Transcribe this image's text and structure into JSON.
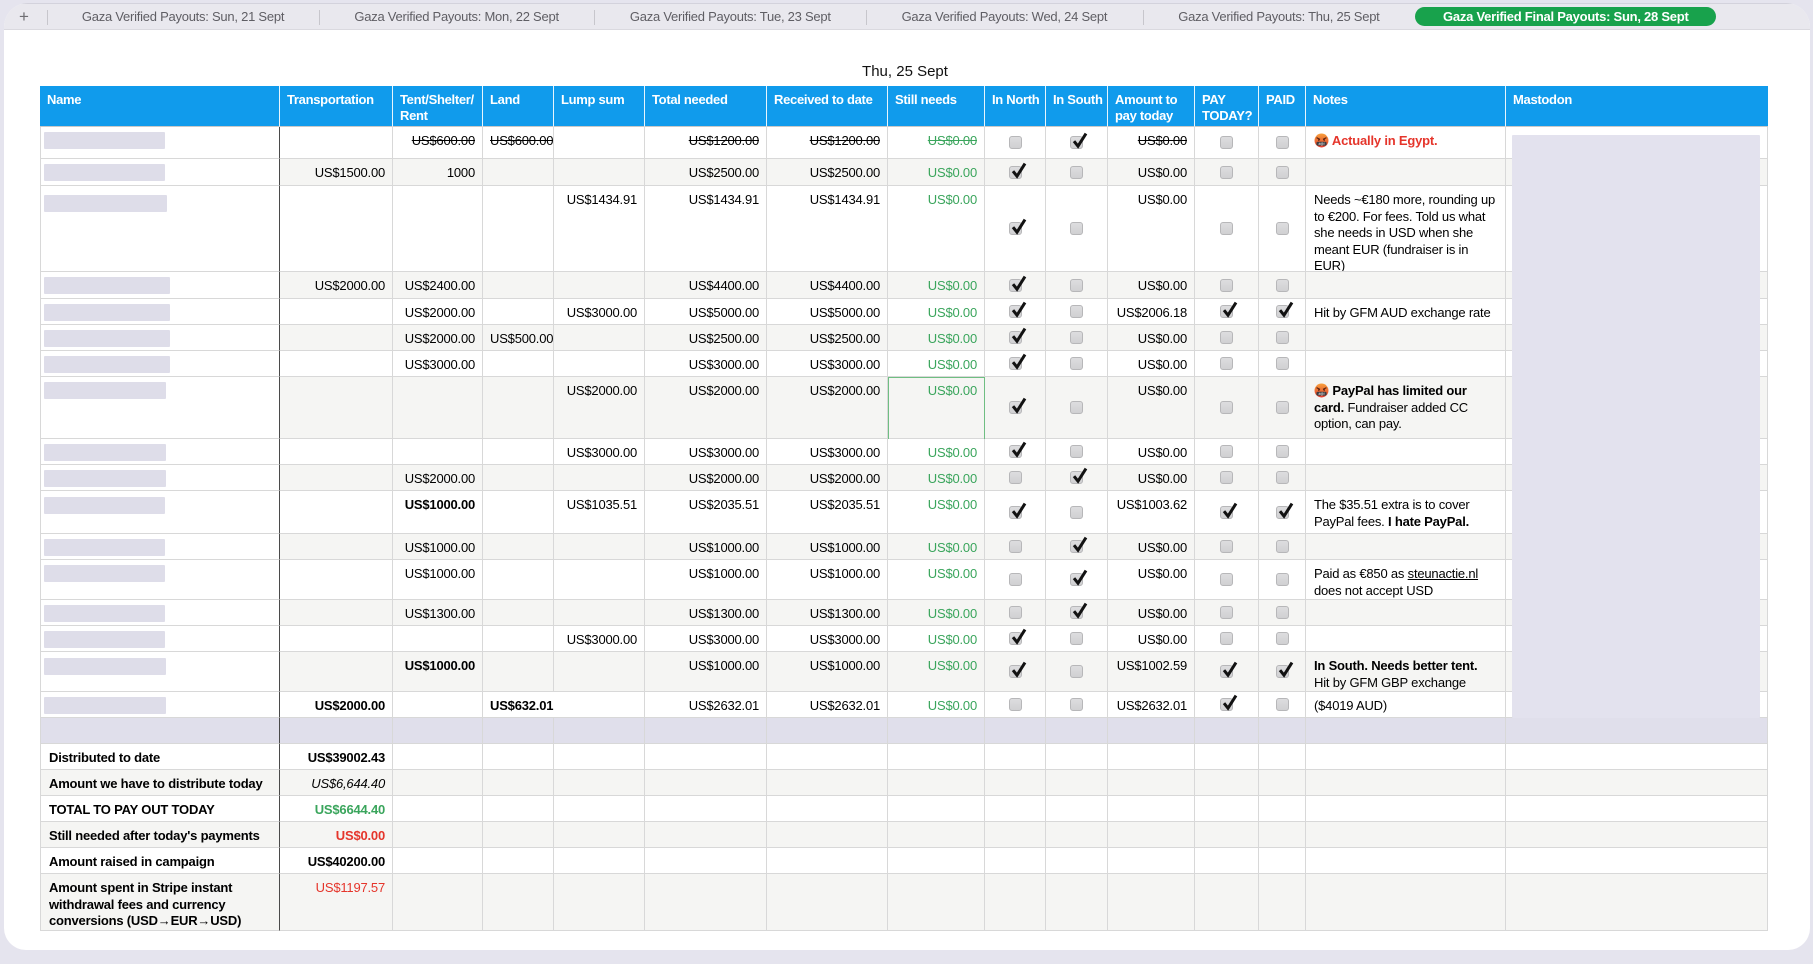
{
  "theme": {
    "page_background": "#E5E4EE",
    "tab_bar_background": "#E9E8EE",
    "active_tab_color": "#18A24C",
    "header_blue": "#109BEC",
    "stripe_gray": "#F5F5F3",
    "redaction_lavender": "#DEDDE9",
    "green_text": "#3AA55C",
    "red_text": "#E5352B",
    "selection_green_border": "#6FBE82"
  },
  "tab_bar": {
    "add_button_label": "+",
    "tabs": [
      {
        "label": "Gaza Verified Payouts: Sun, 21 Sept",
        "active": false
      },
      {
        "label": "Gaza Verified Payouts: Mon, 22 Sept",
        "active": false
      },
      {
        "label": "Gaza Verified Payouts: Tue, 23 Sept",
        "active": false
      },
      {
        "label": "Gaza Verified Payouts: Wed, 24 Sept",
        "active": false
      },
      {
        "label": "Gaza Verified Payouts: Thu, 25 Sept",
        "active": false
      },
      {
        "label": "Gaza Verified Final Payouts: Sun, 28 Sept",
        "active": true
      }
    ]
  },
  "sheet": {
    "title": "Thu, 25 Sept",
    "columns": [
      {
        "id": "name",
        "label": "Name"
      },
      {
        "id": "trans",
        "label": "Transportation"
      },
      {
        "id": "tent",
        "label": "Tent/Shelter/\nRent"
      },
      {
        "id": "land",
        "label": "Land"
      },
      {
        "id": "lump",
        "label": "Lump sum"
      },
      {
        "id": "total",
        "label": "Total needed"
      },
      {
        "id": "received",
        "label": "Received to date"
      },
      {
        "id": "still",
        "label": "Still needs"
      },
      {
        "id": "north",
        "label": "In North"
      },
      {
        "id": "south",
        "label": "In South"
      },
      {
        "id": "amount",
        "label": "Amount to\npay today"
      },
      {
        "id": "paytoday",
        "label": "PAY\nTODAY?"
      },
      {
        "id": "paid",
        "label": "PAID"
      },
      {
        "id": "notes",
        "label": "Notes"
      },
      {
        "id": "mastodon",
        "label": "Mastodon"
      }
    ],
    "rows": [
      {
        "name_redacted": true,
        "trans": "",
        "tent": "US$600.00",
        "land": "US$600.00",
        "lump": "",
        "total": "US$1200.00",
        "received": "US$1200.00",
        "still": "US$0.00",
        "amount": "US$0.00",
        "north": false,
        "south": true,
        "paytoday": false,
        "paid": false,
        "strike_values": true,
        "notes": [
          {
            "icon": "angry-emoji"
          },
          {
            "t": " Actually in Egypt.",
            "b": true,
            "red": true
          }
        ]
      },
      {
        "name_redacted": true,
        "trans": "US$1500.00",
        "tent": "1000",
        "land": "",
        "lump": "",
        "total": "US$2500.00",
        "received": "US$2500.00",
        "still": "US$0.00",
        "amount": "US$0.00",
        "north": true,
        "south": false,
        "paytoday": false,
        "paid": false,
        "notes": []
      },
      {
        "name_redacted": true,
        "trans": "",
        "tent": "",
        "land": "",
        "lump": "US$1434.91",
        "total": "US$1434.91",
        "received": "US$1434.91",
        "still": "US$0.00",
        "amount": "US$0.00",
        "north": true,
        "south": false,
        "paytoday": false,
        "paid": false,
        "notes": [
          {
            "t": "Needs ~€180 more, rounding up"
          },
          {
            "br": true
          },
          {
            "t": "to €200. For fees. Told us what"
          },
          {
            "br": true
          },
          {
            "t": "she needs in USD when she"
          },
          {
            "br": true
          },
          {
            "t": "meant EUR (fundraiser is in"
          },
          {
            "br": true
          },
          {
            "t": "EUR)"
          }
        ]
      },
      {
        "name_redacted": true,
        "trans": "US$2000.00",
        "tent": "US$2400.00",
        "land": "",
        "lump": "",
        "total": "US$4400.00",
        "received": "US$4400.00",
        "still": "US$0.00",
        "amount": "US$0.00",
        "north": true,
        "south": false,
        "paytoday": false,
        "paid": false,
        "notes": []
      },
      {
        "name_redacted": true,
        "trans": "",
        "tent": "US$2000.00",
        "land": "",
        "lump": "US$3000.00",
        "total": "US$5000.00",
        "received": "US$5000.00",
        "still": "US$0.00",
        "amount": "US$2006.18",
        "north": true,
        "south": false,
        "paytoday": true,
        "paid": true,
        "notes": [
          {
            "t": "Hit by GFM AUD exchange rate"
          }
        ]
      },
      {
        "name_redacted": true,
        "trans": "",
        "tent": "US$2000.00",
        "land": "US$500.00",
        "lump": "",
        "total": "US$2500.00",
        "received": "US$2500.00",
        "still": "US$0.00",
        "amount": "US$0.00",
        "north": true,
        "south": false,
        "paytoday": false,
        "paid": false,
        "notes": []
      },
      {
        "name_redacted": true,
        "trans": "",
        "tent": "US$3000.00",
        "land": "",
        "lump": "",
        "total": "US$3000.00",
        "received": "US$3000.00",
        "still": "US$0.00",
        "amount": "US$0.00",
        "north": true,
        "south": false,
        "paytoday": false,
        "paid": false,
        "notes": []
      },
      {
        "name_redacted": true,
        "trans": "",
        "tent": "",
        "land": "",
        "lump": "US$2000.00",
        "total": "US$2000.00",
        "received": "US$2000.00",
        "still": "US$0.00",
        "amount": "US$0.00",
        "north": true,
        "south": false,
        "paytoday": false,
        "paid": false,
        "selected_cell": "still",
        "notes": [
          {
            "icon": "angry-emoji"
          },
          {
            "t": " PayPal has limited our",
            "b": true
          },
          {
            "br": true
          },
          {
            "t": "card.",
            "b": true
          },
          {
            "t": " Fundraiser added CC"
          },
          {
            "br": true
          },
          {
            "t": "option, can pay."
          }
        ]
      },
      {
        "name_redacted": true,
        "trans": "",
        "tent": "",
        "land": "",
        "lump": "US$3000.00",
        "total": "US$3000.00",
        "received": "US$3000.00",
        "still": "US$0.00",
        "amount": "US$0.00",
        "north": true,
        "south": false,
        "paytoday": false,
        "paid": false,
        "notes": []
      },
      {
        "name_redacted": true,
        "trans": "",
        "tent": "US$2000.00",
        "land": "",
        "lump": "",
        "total": "US$2000.00",
        "received": "US$2000.00",
        "still": "US$0.00",
        "amount": "US$0.00",
        "north": false,
        "south": true,
        "paytoday": false,
        "paid": false,
        "notes": []
      },
      {
        "name_redacted": true,
        "trans": "",
        "tent": "US$1000.00",
        "tent_bold": true,
        "land": "",
        "lump": "US$1035.51",
        "total": "US$2035.51",
        "received": "US$2035.51",
        "still": "US$0.00",
        "amount": "US$1003.62",
        "north": true,
        "south": false,
        "paytoday": true,
        "paid": true,
        "notes": [
          {
            "t": "The $35.51 extra is to cover"
          },
          {
            "br": true
          },
          {
            "t": "PayPal fees. "
          },
          {
            "t": "I hate PayPal.",
            "b": true
          }
        ]
      },
      {
        "name_redacted": true,
        "trans": "",
        "tent": "US$1000.00",
        "land": "",
        "lump": "",
        "total": "US$1000.00",
        "received": "US$1000.00",
        "still": "US$0.00",
        "amount": "US$0.00",
        "north": false,
        "south": true,
        "paytoday": false,
        "paid": false,
        "notes": []
      },
      {
        "name_redacted": true,
        "trans": "",
        "tent": "US$1000.00",
        "land": "",
        "lump": "",
        "total": "US$1000.00",
        "received": "US$1000.00",
        "still": "US$0.00",
        "amount": "US$0.00",
        "north": false,
        "south": true,
        "paytoday": false,
        "paid": false,
        "notes": [
          {
            "t": "Paid as €850 as "
          },
          {
            "t": "steunactie.nl",
            "u": true
          },
          {
            "br": true
          },
          {
            "t": "does not accept USD"
          }
        ]
      },
      {
        "name_redacted": true,
        "trans": "",
        "tent": "US$1300.00",
        "land": "",
        "lump": "",
        "total": "US$1300.00",
        "received": "US$1300.00",
        "still": "US$0.00",
        "amount": "US$0.00",
        "north": false,
        "south": true,
        "paytoday": false,
        "paid": false,
        "notes": []
      },
      {
        "name_redacted": true,
        "trans": "",
        "tent": "",
        "land": "",
        "lump": "US$3000.00",
        "total": "US$3000.00",
        "received": "US$3000.00",
        "still": "US$0.00",
        "amount": "US$0.00",
        "north": true,
        "south": false,
        "paytoday": false,
        "paid": false,
        "notes": []
      },
      {
        "name_redacted": true,
        "trans": "",
        "tent": "US$1000.00",
        "tent_bold": true,
        "land": "",
        "lump": "",
        "total": "US$1000.00",
        "received": "US$1000.00",
        "still": "US$0.00",
        "amount": "US$1002.59",
        "north": true,
        "south": false,
        "paytoday": true,
        "paid": true,
        "notes": [
          {
            "t": "In South. Needs better tent.",
            "b": true
          },
          {
            "br": true
          },
          {
            "t": "Hit by GFM GBP exchange"
          }
        ]
      },
      {
        "name_redacted": true,
        "trans": "US$2000.00",
        "trans_bold": true,
        "tent": "",
        "land": "US$632.01",
        "land_bold": true,
        "lump": "",
        "total": "US$2632.01",
        "received": "US$2632.01",
        "still": "US$0.00",
        "amount": "US$2632.01",
        "north": false,
        "south": false,
        "paytoday": true,
        "paid": false,
        "notes": [
          {
            "t": "($4019 AUD)"
          }
        ]
      },
      {
        "redacted_row": true,
        "trans": "",
        "tent": "",
        "land": "",
        "lump": "",
        "total": "",
        "received": "",
        "still": "",
        "amount": "",
        "notes": []
      }
    ],
    "summary_rows": [
      {
        "label": "Distributed to date",
        "value": "US$39002.43",
        "value_style": "bold"
      },
      {
        "label": "Amount we have to distribute today",
        "value": "US$6,644.40",
        "value_style": "italic"
      },
      {
        "label": "TOTAL TO PAY OUT TODAY",
        "value": "US$6644.40",
        "value_style": "bold-green"
      },
      {
        "label": "Still needed after today's payments",
        "value": "US$0.00",
        "value_style": "bold-red"
      },
      {
        "label": "Amount raised in campaign",
        "value": "US$40200.00",
        "value_style": "bold"
      },
      {
        "label": "Amount spent in Stripe instant\nwithdrawal fees and currency\nconversions (USD→EUR→USD)",
        "value": "US$1197.57",
        "value_style": "red"
      }
    ]
  }
}
